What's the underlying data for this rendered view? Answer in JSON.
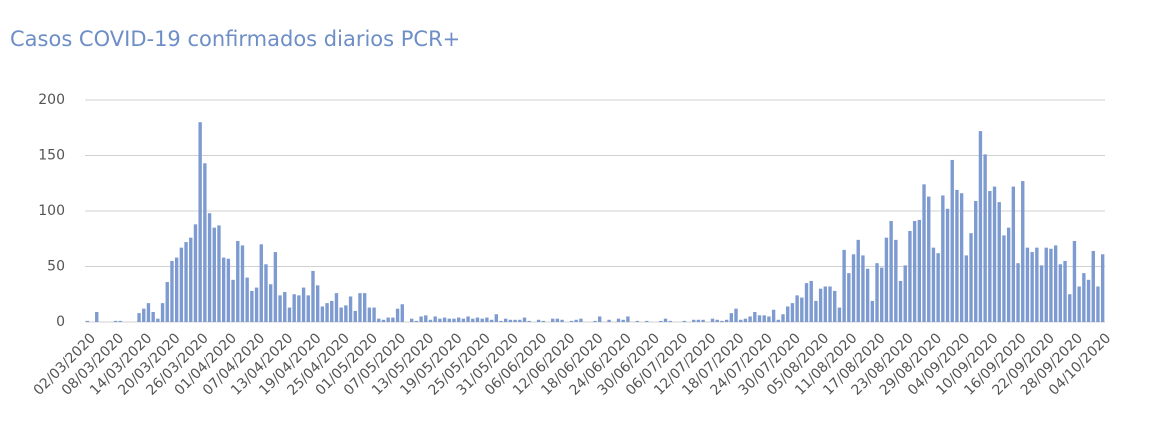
{
  "chart_data": {
    "type": "bar",
    "title": "Casos COVID-19 confirmados diarios PCR+",
    "color": "#7d9bd0",
    "ylim": [
      0,
      200
    ],
    "yticks": [
      0,
      50,
      100,
      150,
      200
    ],
    "grid": true,
    "categories": [
      "02/03/2020",
      null,
      null,
      null,
      null,
      null,
      "08/03/2020",
      null,
      null,
      null,
      null,
      null,
      "14/03/2020",
      null,
      null,
      null,
      null,
      null,
      "20/03/2020",
      null,
      null,
      null,
      null,
      null,
      "26/03/2020",
      null,
      null,
      null,
      null,
      null,
      "01/04/2020",
      null,
      null,
      null,
      null,
      null,
      "07/04/2020",
      null,
      null,
      null,
      null,
      null,
      "13/04/2020",
      null,
      null,
      null,
      null,
      null,
      "19/04/2020",
      null,
      null,
      null,
      null,
      null,
      "25/04/2020",
      null,
      null,
      null,
      null,
      null,
      "01/05/2020",
      null,
      null,
      null,
      null,
      null,
      "07/05/2020",
      null,
      null,
      null,
      null,
      null,
      "13/05/2020",
      null,
      null,
      null,
      null,
      null,
      "19/05/2020",
      null,
      null,
      null,
      null,
      null,
      "25/05/2020",
      null,
      null,
      null,
      null,
      null,
      "31/05/2020",
      null,
      null,
      null,
      null,
      null,
      "06/06/2020",
      null,
      null,
      null,
      null,
      null,
      "12/06/2020",
      null,
      null,
      null,
      null,
      null,
      "18/06/2020",
      null,
      null,
      null,
      null,
      null,
      "24/06/2020",
      null,
      null,
      null,
      null,
      null,
      "30/06/2020",
      null,
      null,
      null,
      null,
      null,
      "06/07/2020",
      null,
      null,
      null,
      null,
      null,
      "12/07/2020",
      null,
      null,
      null,
      null,
      null,
      "18/07/2020",
      null,
      null,
      null,
      null,
      null,
      "24/07/2020",
      null,
      null,
      null,
      null,
      null,
      "30/07/2020",
      null,
      null,
      null,
      null,
      null,
      "05/08/2020",
      null,
      null,
      null,
      null,
      null,
      "11/08/2020",
      null,
      null,
      null,
      null,
      null,
      "17/08/2020",
      null,
      null,
      null,
      null,
      null,
      "23/08/2020",
      null,
      null,
      null,
      null,
      null,
      "29/08/2020",
      null,
      null,
      null,
      null,
      null,
      "04/09/2020",
      null,
      null,
      null,
      null,
      null,
      "10/09/2020",
      null,
      null,
      null,
      null,
      null,
      "16/09/2020",
      null,
      null,
      null,
      null,
      null,
      "22/09/2020",
      null,
      null,
      null,
      null,
      null,
      "28/09/2020",
      null,
      null,
      null,
      null,
      null,
      "04/10/2020"
    ],
    "values": [
      1,
      0,
      9,
      0,
      0,
      0,
      1,
      1,
      0,
      0,
      0,
      8,
      12,
      17,
      9,
      3,
      17,
      36,
      55,
      58,
      67,
      72,
      76,
      88,
      180,
      143,
      98,
      85,
      87,
      58,
      57,
      38,
      73,
      69,
      40,
      28,
      31,
      70,
      52,
      34,
      63,
      24,
      27,
      13,
      25,
      24,
      31,
      24,
      46,
      33,
      14,
      17,
      19,
      26,
      13,
      15,
      23,
      10,
      26,
      26,
      13,
      13,
      3,
      2,
      4,
      4,
      12,
      16,
      0,
      3,
      1,
      5,
      6,
      2,
      5,
      3,
      4,
      3,
      3,
      4,
      3,
      5,
      3,
      4,
      3,
      4,
      2,
      7,
      1,
      3,
      2,
      2,
      2,
      4,
      1,
      0,
      2,
      1,
      0,
      3,
      3,
      2,
      0,
      1,
      2,
      3,
      0,
      0,
      1,
      5,
      0,
      2,
      0,
      3,
      2,
      5,
      0,
      1,
      0,
      1,
      0,
      0,
      1,
      3,
      1,
      0,
      0,
      1,
      0,
      2,
      2,
      2,
      0,
      3,
      2,
      1,
      2,
      8,
      12,
      2,
      3,
      5,
      9,
      6,
      6,
      5,
      11,
      2,
      7,
      14,
      17,
      24,
      22,
      35,
      37,
      19,
      30,
      32,
      32,
      28,
      13,
      65,
      44,
      61,
      74,
      60,
      48,
      19,
      53,
      49,
      76,
      91,
      74,
      37,
      51,
      82,
      91,
      92,
      124,
      113,
      67,
      62,
      114,
      102,
      146,
      119,
      116,
      60,
      80,
      109,
      172,
      151,
      118,
      122,
      108,
      78,
      85,
      122,
      53,
      127,
      67,
      63,
      67,
      51,
      67,
      66,
      69,
      52,
      55,
      25,
      73,
      32,
      44,
      38,
      64,
      32,
      61
    ]
  }
}
